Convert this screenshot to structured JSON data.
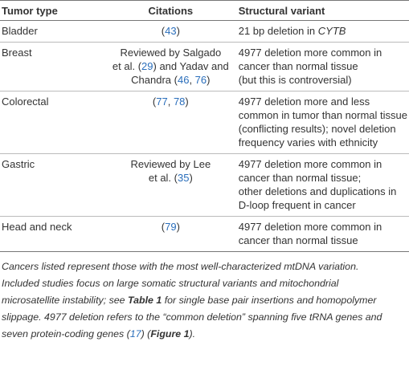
{
  "table": {
    "header": [
      "Tumor type",
      "Citations",
      "Structural variant"
    ],
    "rows": [
      {
        "tumor_type": "Bladder",
        "citations": [
          [
            "(",
            "43",
            ")"
          ]
        ],
        "variant": [
          [
            "21 bp deletion in ",
            "CYTB"
          ]
        ]
      },
      {
        "tumor_type": "Breast",
        "citations": [
          [
            "Reviewed by Salgado"
          ],
          [
            "et al. (",
            "29",
            ") and Yadav and"
          ],
          [
            "Chandra (",
            "46",
            ", ",
            "76",
            ")"
          ]
        ],
        "variant": [
          [
            "4977 deletion more common in"
          ],
          [
            "cancer than normal tissue"
          ],
          [
            "(but this is controversial)"
          ]
        ]
      },
      {
        "tumor_type": "Colorectal",
        "citations": [
          [
            "(",
            "77",
            ", ",
            "78",
            ")"
          ]
        ],
        "variant": [
          [
            "4977 deletion more and less"
          ],
          [
            "common in tumor than normal tissue"
          ],
          [
            "(conflicting results); novel deletion"
          ],
          [
            "frequency varies with ethnicity"
          ]
        ]
      },
      {
        "tumor_type": "Gastric",
        "citations": [
          [
            "Reviewed by Lee"
          ],
          [
            "et al. (",
            "35",
            ")"
          ]
        ],
        "variant": [
          [
            "4977 deletion more common in"
          ],
          [
            "cancer than normal tissue;"
          ],
          [
            "other deletions and duplications in"
          ],
          [
            "D-loop frequent in cancer"
          ]
        ]
      },
      {
        "tumor_type": "Head and neck",
        "citations": [
          [
            "(",
            "79",
            ")"
          ]
        ],
        "variant": [
          [
            "4977 deletion more common in"
          ],
          [
            "cancer than normal tissue"
          ]
        ]
      }
    ]
  },
  "footnote": [
    [
      "Cancers listed represent those with the most well-characterized mtDNA variation."
    ],
    [
      "Included studies focus on large somatic structural variants and mitochondrial"
    ],
    [
      "microsatellite instability; see ",
      "Table 1",
      " for single base pair insertions and homopolymer"
    ],
    [
      "slippage. 4977 deletion refers to the “common deletion” spanning five tRNA genes and"
    ],
    [
      "seven protein-coding genes (",
      "17",
      ") (",
      "Figure 1",
      ")."
    ]
  ]
}
